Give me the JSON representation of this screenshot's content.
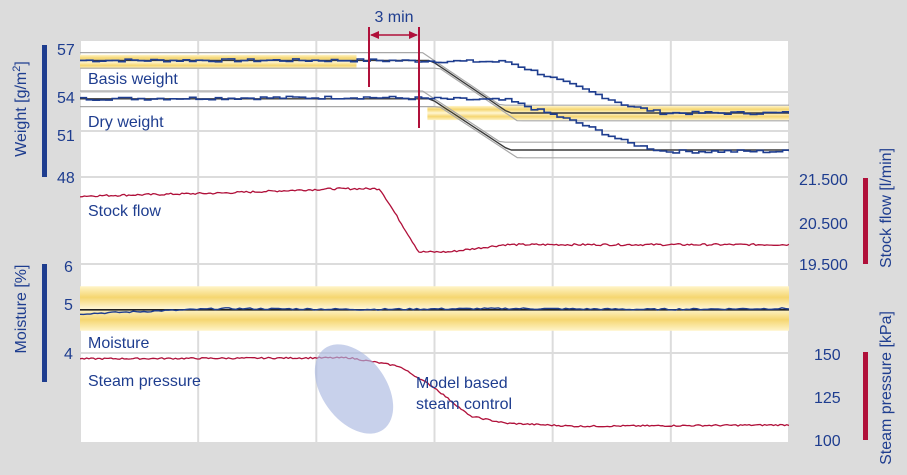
{
  "colors": {
    "background": "#dcdcdc",
    "plot": "#ffffff",
    "grid": "#dcdcdc",
    "navy": "#1e3d8f",
    "crimson": "#b0103a",
    "band": "#f5d670",
    "band_line": "#a09880",
    "envelope": "#a8a8a8",
    "ellipse": "#aab8e0",
    "text": "#1e3d8f"
  },
  "annotation": {
    "label": "3 min"
  },
  "chart_data": [
    {
      "type": "line",
      "panel": "weight",
      "ylabel": "Weight [g/m2]",
      "ylabel_main": "Weight [g/m",
      "ylabel_sup": "2",
      "ylabel_end": "]",
      "ylim": [
        48,
        57
      ],
      "ticks": [
        "57",
        "54",
        "51",
        "48"
      ],
      "tick_values": [
        57,
        54,
        51,
        48
      ],
      "axis_side": "left",
      "series": [
        {
          "name": "Basis weight",
          "points": [
            [
              0,
              56.2
            ],
            [
              0.4,
              56.2
            ],
            [
              0.6,
              56.1
            ],
            [
              0.7,
              54.3
            ],
            [
              0.77,
              53.0
            ],
            [
              0.82,
              52.5
            ],
            [
              1,
              52.5
            ]
          ]
        },
        {
          "name": "Dry weight",
          "points": [
            [
              0,
              53.5
            ],
            [
              0.4,
              53.6
            ],
            [
              0.6,
              53.4
            ],
            [
              0.7,
              51.8
            ],
            [
              0.77,
              50.4
            ],
            [
              0.82,
              49.8
            ],
            [
              1,
              49.8
            ]
          ]
        }
      ],
      "targets": [
        {
          "series": "Basis weight",
          "points": [
            [
              0,
              56.2
            ],
            [
              0.495,
              56.2
            ],
            [
              0.605,
              52.5
            ],
            [
              1,
              52.5
            ]
          ]
        },
        {
          "series": "Dry weight",
          "points": [
            [
              0,
              53.5
            ],
            [
              0.495,
              53.5
            ],
            [
              0.605,
              49.9
            ],
            [
              1,
              49.9
            ]
          ]
        }
      ],
      "bands": [
        [
          55.6,
          56.6
        ],
        [
          52.0,
          53.0
        ]
      ]
    },
    {
      "type": "line",
      "panel": "stock_flow",
      "ylabel": "Stock flow [l/min]",
      "ylim": [
        19500,
        21500
      ],
      "ticks": [
        "21.500",
        "20.500",
        "19.500"
      ],
      "tick_values": [
        21500,
        20500,
        19500
      ],
      "axis_side": "right",
      "series": [
        {
          "name": "Stock flow",
          "points": [
            [
              0,
              21.08
            ],
            [
              0.2,
              21.15
            ],
            [
              0.36,
              21.25
            ],
            [
              0.423,
              21.25
            ],
            [
              0.478,
              19.78
            ],
            [
              0.52,
              19.78
            ],
            [
              0.6,
              19.95
            ],
            [
              1,
              19.95
            ]
          ]
        }
      ]
    },
    {
      "type": "line",
      "panel": "moisture",
      "ylabel": "Moisture [%]",
      "ylim": [
        4,
        6
      ],
      "ticks": [
        "6",
        "5",
        "4"
      ],
      "tick_values": [
        6,
        5,
        4
      ],
      "axis_side": "left",
      "series": [
        {
          "name": "Moisture",
          "points": [
            [
              0,
              4.88
            ],
            [
              0.2,
              5.0
            ],
            [
              0.4,
              4.98
            ],
            [
              0.6,
              5.0
            ],
            [
              0.8,
              4.98
            ],
            [
              1,
              5.0
            ]
          ]
        }
      ],
      "bands": [
        [
          4.5,
          5.5
        ]
      ],
      "target": 4.97
    },
    {
      "type": "line",
      "panel": "steam_pressure",
      "ylabel": "Steam pressure [kPa]",
      "ylim": [
        100,
        150
      ],
      "ticks": [
        "150",
        "125",
        "100"
      ],
      "tick_values": [
        150,
        125,
        100
      ],
      "axis_side": "right",
      "series": [
        {
          "name": "Steam pressure",
          "points": [
            [
              0,
              146.6
            ],
            [
              0.2,
              146.9
            ],
            [
              0.38,
              147.2
            ],
            [
              0.45,
              142.2
            ],
            [
              0.5,
              129.6
            ],
            [
              0.55,
              112.9
            ],
            [
              0.6,
              108.7
            ],
            [
              0.7,
              106.9
            ],
            [
              1,
              107.7
            ]
          ]
        }
      ],
      "annotation": "Model based steam control",
      "annotation_line1": "Model based",
      "annotation_line2": "steam control"
    }
  ]
}
